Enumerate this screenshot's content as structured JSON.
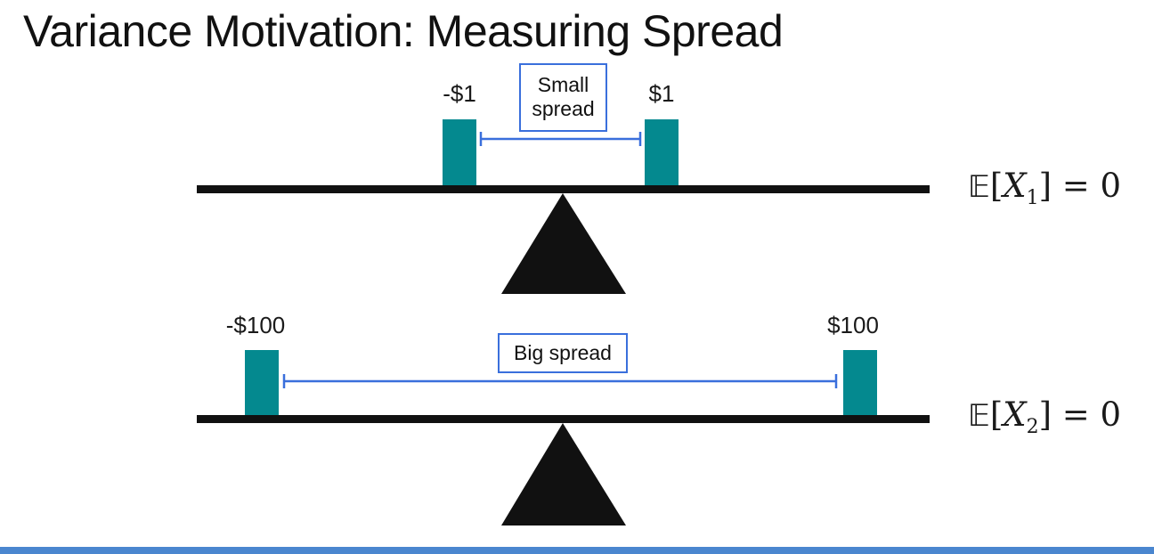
{
  "title": "Variance Motivation: Measuring Spread",
  "seesaws": [
    {
      "left_value": "-$1",
      "right_value": "$1",
      "spread_label_line1": "Small",
      "spread_label_line2": "spread",
      "expectation": {
        "symbol": "𝔼",
        "var": "X",
        "sub": "1",
        "rhs": "= 0"
      }
    },
    {
      "left_value": "-$100",
      "right_value": "$100",
      "spread_label": "Big spread",
      "expectation": {
        "symbol": "𝔼",
        "var": "X",
        "sub": "2",
        "rhs": "= 0"
      }
    }
  ],
  "colors": {
    "weight": "#04898f",
    "beam": "#111111",
    "spread_line": "#3a6fdc",
    "bottom_bar": "#4a86cf"
  }
}
